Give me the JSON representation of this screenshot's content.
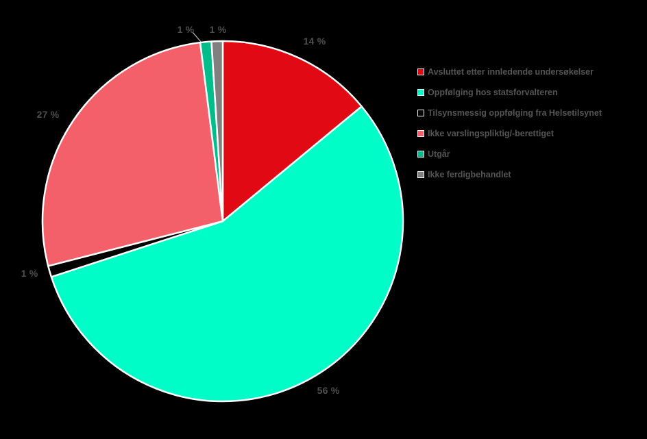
{
  "chart_data": {
    "type": "pie",
    "title": "",
    "legend_position": "right",
    "background": "#000000",
    "label_color": "#4f4f4f",
    "legend_text_color": "#555555",
    "slice_border_color": "#ffffff",
    "leader_line_color": "#bfbfbf",
    "start_angle_deg": 0,
    "direction": "clockwise",
    "segments": [
      {
        "label": "Avsluttet etter innledende undersøkelser",
        "value": 14,
        "pct_label": "14 %",
        "color": "#e00914"
      },
      {
        "label": "Oppfølging hos statsforvalteren",
        "value": 56,
        "pct_label": "56 %",
        "color": "#00fcc7"
      },
      {
        "label": "Tilsynsmessig oppfølging fra Helsetilsynet",
        "value": 1,
        "pct_label": "1 %",
        "color": "#000000"
      },
      {
        "label": "Ikke varslingspliktig/-berettiget",
        "value": 27,
        "pct_label": "27 %",
        "color": "#f4606a"
      },
      {
        "label": "Utgår",
        "value": 1,
        "pct_label": "1 %",
        "color": "#00bd8a"
      },
      {
        "label": "Ikke ferdigbehandlet",
        "value": 1,
        "pct_label": "1 %",
        "color": "#808080"
      }
    ]
  }
}
